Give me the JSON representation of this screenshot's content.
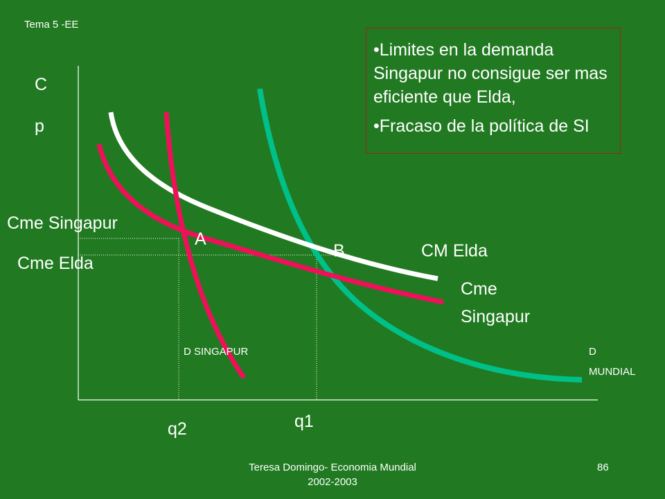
{
  "header": {
    "topic": "Tema 5 -EE"
  },
  "box": {
    "bullets": [
      "Limites en la demanda Singapur no consigue ser mas eficiente que Elda,",
      "Fracaso  de la política de SI"
    ]
  },
  "diagram": {
    "axis_y_lines": [
      "C",
      "p"
    ],
    "labels": {
      "cme_singapur_left": "Cme Singapur",
      "cme_elda_left": "Cme Elda",
      "point_a": "A",
      "point_b": "B",
      "cm_elda": "CM Elda",
      "cme_singapur_right": [
        "Cme",
        "Singapur"
      ],
      "d_singapur": "D SINGAPUR",
      "d_mundial": [
        "D",
        "MUNDIAL"
      ],
      "q2": "q2",
      "q1": "q1"
    }
  },
  "footer": {
    "author_lines": [
      "Teresa Domingo- Economia Mundial",
      "2002-2003"
    ],
    "page": "86"
  }
}
